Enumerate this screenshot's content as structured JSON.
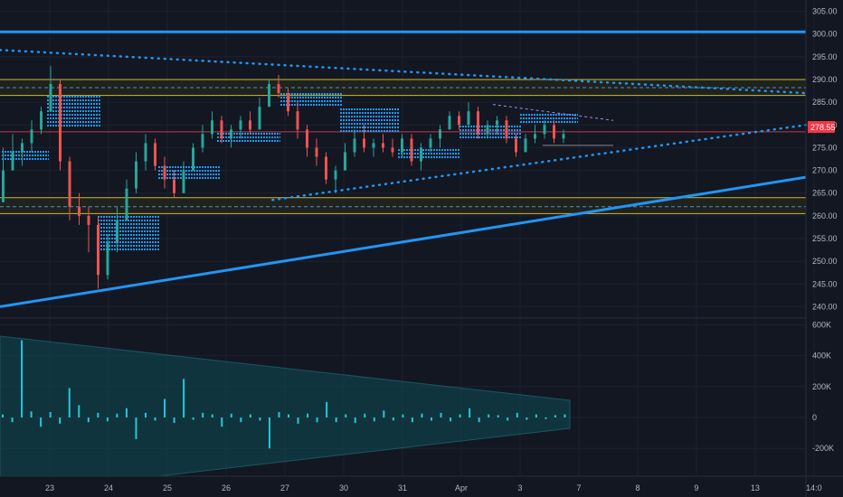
{
  "colors": {
    "background": "#131722",
    "grid": "#1e2230",
    "axis_text": "#b2b5be",
    "candle_up": "#26a69a",
    "candle_down": "#ef5350",
    "trendline": "#2196f3",
    "horizontal_band": "#c9b93a",
    "dotted_line": "#2196f3",
    "hatched_box": "#2196f3",
    "volume_bar": "#26c6da",
    "volume_fill": "#0e4d55",
    "price_badge": "#f23645",
    "wedge_line": "#b085f5"
  },
  "chart_data": {
    "type": "candlestick",
    "price_axis": {
      "ylim": [
        237.5,
        307.5
      ],
      "ticks": [
        "305.00",
        "300.00",
        "295.00",
        "290.00",
        "285.00",
        "280.00",
        "275.00",
        "270.00",
        "265.00",
        "260.00",
        "255.00",
        "250.00",
        "245.00",
        "240.00"
      ],
      "tick_values": [
        305,
        300,
        295,
        290,
        285,
        280,
        275,
        270,
        265,
        260,
        255,
        250,
        245,
        240
      ]
    },
    "last_price": "278.55",
    "x_ticks": [
      "23",
      "24",
      "25",
      "26",
      "27",
      "30",
      "31",
      "Apr",
      "3",
      "7",
      "8",
      "9",
      "13",
      "14:0"
    ],
    "x_tick_bars": [
      12,
      27,
      42,
      57,
      72,
      87,
      102,
      117,
      132,
      147,
      162,
      177,
      192,
      207
    ],
    "candles": [
      [
        263,
        263,
        275,
        270
      ],
      [
        270,
        270,
        278,
        274
      ],
      [
        274,
        271,
        277,
        276
      ],
      [
        276,
        274,
        281,
        279
      ],
      [
        279,
        278,
        284,
        283
      ],
      [
        283,
        283,
        293,
        289
      ],
      [
        289,
        270,
        290,
        272
      ],
      [
        272,
        259,
        273,
        262
      ],
      [
        262,
        258,
        265,
        260
      ],
      [
        260,
        252,
        262,
        258
      ],
      [
        258,
        244,
        260,
        247
      ],
      [
        247,
        246,
        256,
        254
      ],
      [
        254,
        252,
        262,
        259
      ],
      [
        259,
        259,
        268,
        266
      ],
      [
        266,
        265,
        274,
        272
      ],
      [
        272,
        270,
        278,
        276
      ],
      [
        276,
        270,
        277,
        271
      ],
      [
        271,
        266,
        273,
        268
      ],
      [
        268,
        264,
        270,
        265
      ],
      [
        265,
        265,
        272,
        270
      ],
      [
        270,
        270,
        276,
        275
      ],
      [
        275,
        274,
        280,
        278
      ],
      [
        278,
        277,
        283,
        281
      ],
      [
        281,
        276,
        282,
        277
      ],
      [
        277,
        275,
        280,
        279
      ],
      [
        279,
        277,
        282,
        281
      ],
      [
        281,
        278,
        283,
        279
      ],
      [
        279,
        279,
        286,
        284
      ],
      [
        284,
        284,
        290,
        289
      ],
      [
        289,
        286,
        291,
        287
      ],
      [
        287,
        282,
        288,
        283
      ],
      [
        283,
        277,
        285,
        279
      ],
      [
        279,
        273,
        280,
        275
      ],
      [
        275,
        271,
        277,
        273
      ],
      [
        273,
        267,
        274,
        268
      ],
      [
        268,
        265,
        271,
        270
      ],
      [
        270,
        270,
        276,
        274
      ],
      [
        274,
        273,
        279,
        277
      ],
      [
        277,
        274,
        280,
        275
      ],
      [
        275,
        273,
        277,
        276
      ],
      [
        276,
        274,
        278,
        275
      ],
      [
        275,
        273,
        277,
        274
      ],
      [
        274,
        273,
        278,
        277
      ],
      [
        277,
        271,
        278,
        272
      ],
      [
        272,
        270,
        276,
        275
      ],
      [
        275,
        274,
        278,
        277
      ],
      [
        277,
        275,
        280,
        279
      ],
      [
        279,
        279,
        283,
        282
      ],
      [
        282,
        279,
        283,
        280
      ],
      [
        280,
        280,
        285,
        283
      ],
      [
        283,
        277,
        284,
        278
      ],
      [
        278,
        277,
        281,
        280
      ],
      [
        280,
        278,
        282,
        281
      ],
      [
        281,
        276,
        282,
        277
      ],
      [
        277,
        273,
        278,
        274
      ],
      [
        274,
        274,
        278,
        277
      ],
      [
        277,
        276,
        280,
        278
      ],
      [
        278,
        277,
        281,
        280
      ],
      [
        280,
        276,
        281,
        277
      ],
      [
        277,
        276,
        279,
        278
      ]
    ],
    "volume_axis": {
      "ylim": [
        -380000,
        620000
      ],
      "ticks": [
        "600K",
        "400K",
        "200K",
        "0",
        "-200K"
      ],
      "tick_values": [
        600000,
        400000,
        200000,
        0,
        -200000
      ]
    },
    "volume": [
      20000,
      -30000,
      500000,
      40000,
      -60000,
      35000,
      -40000,
      190000,
      80000,
      -30000,
      30000,
      -25000,
      25000,
      60000,
      -140000,
      30000,
      -20000,
      120000,
      -35000,
      250000,
      -15000,
      30000,
      20000,
      -60000,
      25000,
      -30000,
      20000,
      -20000,
      -200000,
      35000,
      20000,
      -40000,
      25000,
      -30000,
      100000,
      -30000,
      20000,
      -35000,
      25000,
      -25000,
      45000,
      -20000,
      20000,
      -30000,
      25000,
      -20000,
      30000,
      -25000,
      20000,
      60000,
      -30000,
      20000,
      15000,
      -20000,
      30000,
      -15000,
      20000,
      -10000,
      15000,
      20000
    ],
    "trendlines": [
      {
        "name": "top-horizontal",
        "from": [
          0,
          300.5
        ],
        "to": [
          210,
          300.5
        ]
      },
      {
        "name": "rising-support",
        "from": [
          0,
          240
        ],
        "to": [
          210,
          268.5
        ]
      }
    ],
    "dotted_lines": [
      {
        "name": "descending-resistance",
        "from": [
          0,
          296.5
        ],
        "to": [
          210,
          287
        ]
      },
      {
        "name": "rising-dotted",
        "from": [
          71,
          263.5
        ],
        "to": [
          210,
          280
        ]
      }
    ],
    "price_bands": [
      {
        "top": 290,
        "bottom": 286.5,
        "mid": 288.2
      },
      {
        "top": 264,
        "bottom": 260.5,
        "mid": 262
      }
    ],
    "last_price_line": 278.5
  }
}
